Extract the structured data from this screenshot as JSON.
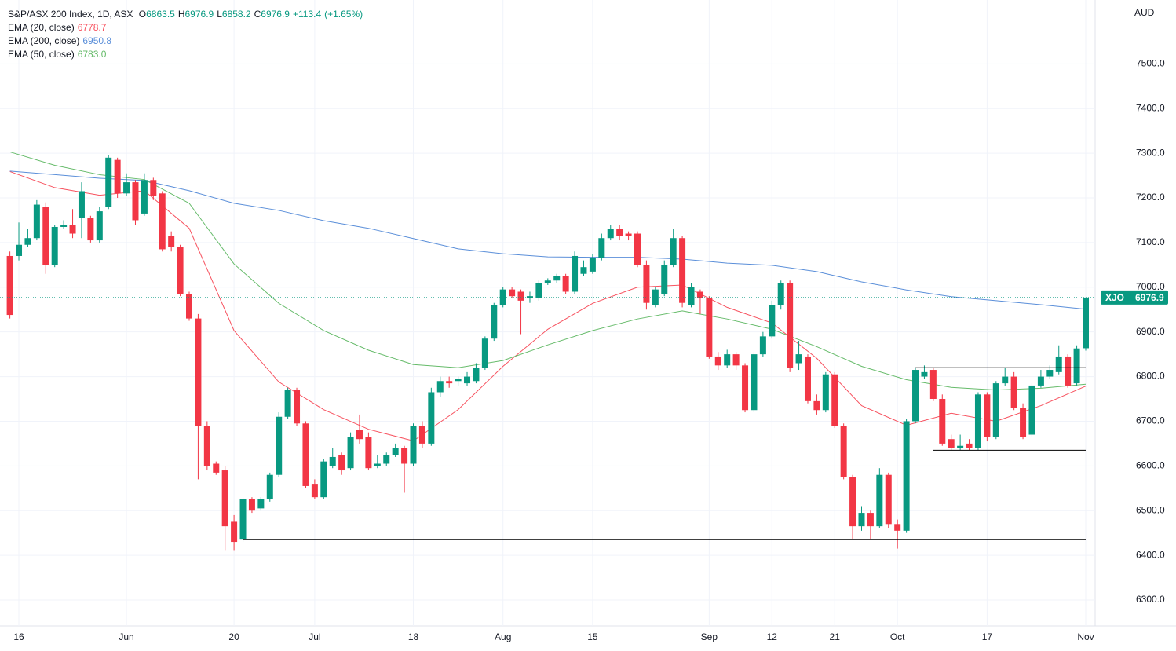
{
  "chart_data": {
    "type": "candlestick",
    "title": "S&P/ASX 200 Index, 1D, ASX",
    "currency": "AUD",
    "symbol": "XJO",
    "header": {
      "open": 6863.5,
      "high": 6976.9,
      "low": 6858.2,
      "close": 6976.9,
      "change": {
        "value": 113.4,
        "label": "+113.4"
      },
      "change_pct": {
        "value": 1.65,
        "label": "(+1.65%)"
      }
    },
    "up_color": "#089981",
    "down_color": "#f23645",
    "categories": [
      null,
      "16",
      null,
      null,
      null,
      null,
      null,
      null,
      null,
      null,
      null,
      null,
      null,
      "Jun",
      null,
      null,
      null,
      null,
      null,
      null,
      null,
      null,
      null,
      null,
      null,
      "20",
      null,
      null,
      null,
      null,
      null,
      null,
      null,
      null,
      "Jul",
      null,
      null,
      null,
      null,
      null,
      null,
      null,
      null,
      null,
      null,
      "18",
      null,
      null,
      null,
      null,
      null,
      null,
      null,
      null,
      null,
      "Aug",
      null,
      null,
      null,
      null,
      null,
      null,
      null,
      null,
      null,
      "15",
      null,
      null,
      null,
      null,
      null,
      null,
      null,
      null,
      null,
      null,
      null,
      null,
      "Sep",
      null,
      null,
      null,
      null,
      null,
      null,
      "12",
      null,
      null,
      null,
      null,
      null,
      null,
      "21",
      null,
      null,
      null,
      null,
      null,
      null,
      "Oct",
      null,
      null,
      null,
      null,
      null,
      null,
      null,
      null,
      null,
      "17",
      null,
      null,
      null,
      null,
      null,
      null,
      null,
      null,
      null,
      null,
      "Nov"
    ],
    "open": [
      7070,
      7070,
      7095,
      7110,
      7180,
      7050,
      7135,
      7140,
      7155,
      7155,
      7105,
      7180,
      7285,
      7210,
      7235,
      7165,
      7240,
      7210,
      7115,
      7090,
      6985,
      6930,
      6690,
      6605,
      6590,
      6475,
      6435,
      6525,
      6505,
      6525,
      6580,
      6710,
      6770,
      6695,
      6560,
      6530,
      6600,
      6625,
      6595,
      6680,
      6665,
      6600,
      6605,
      6625,
      6640,
      6605,
      6690,
      6650,
      6765,
      6790,
      6790,
      6785,
      6790,
      6820,
      6885,
      6960,
      6995,
      6990,
      6975,
      6975,
      7010,
      7015,
      7025,
      6990,
      7030,
      7035,
      7065,
      7110,
      7130,
      7120,
      7120,
      7050,
      6960,
      6985,
      7050,
      7110,
      6960,
      6990,
      6975,
      6845,
      6825,
      6850,
      6825,
      6725,
      6850,
      6890,
      6960,
      7010,
      6830,
      6845,
      6745,
      6725,
      6805,
      6690,
      6575,
      6465,
      6495,
      6465,
      6580,
      6470,
      6455,
      6700,
      6800,
      6815,
      6750,
      6660,
      6640,
      6650,
      6640,
      6760,
      6665,
      6785,
      6800,
      6730,
      6670,
      6780,
      6800,
      6810,
      6845,
      6785,
      6863.5
    ],
    "high": [
      7080,
      7145,
      7130,
      7195,
      7190,
      7140,
      7150,
      7175,
      7235,
      7160,
      7180,
      7295,
      7290,
      7255,
      7240,
      7255,
      7245,
      7215,
      7125,
      7095,
      6990,
      6940,
      6700,
      6610,
      6600,
      6490,
      6530,
      6530,
      6530,
      6585,
      6720,
      6775,
      6775,
      6700,
      6570,
      6615,
      6640,
      6630,
      6675,
      6715,
      6675,
      6625,
      6630,
      6650,
      6645,
      6695,
      6700,
      6775,
      6800,
      6800,
      6800,
      6810,
      6830,
      6890,
      6965,
      7000,
      7000,
      6995,
      6990,
      7015,
      7020,
      7030,
      7030,
      7080,
      7060,
      7075,
      7120,
      7140,
      7140,
      7125,
      7125,
      7060,
      7000,
      7060,
      7130,
      7115,
      7010,
      6995,
      6980,
      6855,
      6860,
      6855,
      6830,
      6855,
      6900,
      6970,
      7015,
      7015,
      6880,
      6850,
      6760,
      6810,
      6810,
      6695,
      6580,
      6510,
      6500,
      6595,
      6585,
      6480,
      6705,
      6820,
      6825,
      6820,
      6760,
      6670,
      6670,
      6660,
      6765,
      6765,
      6790,
      6820,
      6810,
      6740,
      6785,
      6815,
      6825,
      6870,
      6850,
      6870,
      6976.9
    ],
    "low": [
      6930,
      7060,
      7090,
      7105,
      7030,
      7045,
      7130,
      7110,
      7110,
      7100,
      7100,
      7175,
      7200,
      7205,
      7140,
      7160,
      7195,
      7080,
      7080,
      6980,
      6925,
      6570,
      6590,
      6580,
      6410,
      6410,
      6430,
      6495,
      6500,
      6520,
      6575,
      6705,
      6690,
      6550,
      6525,
      6525,
      6595,
      6580,
      6590,
      6650,
      6590,
      6595,
      6600,
      6620,
      6540,
      6600,
      6640,
      6645,
      6755,
      6775,
      6780,
      6780,
      6785,
      6815,
      6880,
      6955,
      6975,
      6895,
      6965,
      6970,
      7005,
      7010,
      6985,
      6985,
      7025,
      7030,
      7060,
      7105,
      7105,
      7105,
      7045,
      6950,
      6955,
      6980,
      7045,
      6955,
      6955,
      6940,
      6840,
      6815,
      6820,
      6815,
      6720,
      6720,
      6845,
      6885,
      6950,
      6810,
      6815,
      6740,
      6715,
      6720,
      6685,
      6570,
      6435,
      6455,
      6435,
      6460,
      6460,
      6415,
      6450,
      6695,
      6795,
      6745,
      6645,
      6635,
      6635,
      6635,
      6635,
      6655,
      6660,
      6780,
      6725,
      6660,
      6665,
      6775,
      6795,
      6805,
      6775,
      6780,
      6858.2
    ],
    "close": [
      6938,
      7095,
      7110,
      7185,
      7050,
      7135,
      7140,
      7120,
      7215,
      7105,
      7170,
      7290,
      7210,
      7235,
      7150,
      7240,
      7205,
      7085,
      7090,
      6985,
      6930,
      6690,
      6600,
      6585,
      6465,
      6430,
      6525,
      6500,
      6525,
      6580,
      6710,
      6770,
      6695,
      6555,
      6530,
      6610,
      6620,
      6590,
      6665,
      6660,
      6595,
      6605,
      6625,
      6640,
      6605,
      6690,
      6650,
      6765,
      6790,
      6785,
      6795,
      6800,
      6820,
      6885,
      6960,
      6995,
      6980,
      6970,
      6980,
      7010,
      7015,
      7025,
      6990,
      7070,
      7045,
      7065,
      7110,
      7130,
      7115,
      7115,
      7050,
      6965,
      6995,
      7050,
      7110,
      6965,
      7000,
      6975,
      6845,
      6825,
      6850,
      6825,
      6725,
      6850,
      6890,
      6960,
      7010,
      6820,
      6850,
      6745,
      6725,
      6805,
      6690,
      6575,
      6465,
      6495,
      6465,
      6580,
      6470,
      6455,
      6700,
      6815,
      6810,
      6750,
      6650,
      6640,
      6645,
      6640,
      6760,
      6665,
      6785,
      6800,
      6730,
      6665,
      6780,
      6800,
      6815,
      6845,
      6780,
      6863,
      6976.9
    ],
    "series": [
      {
        "name": "EMA (20, close)",
        "color": "#f7525f",
        "x": [
          0,
          5,
          10,
          15,
          20,
          25,
          30,
          35,
          40,
          45,
          50,
          55,
          60,
          65,
          70,
          75,
          80,
          85,
          90,
          95,
          100,
          105,
          110,
          115,
          120
        ],
        "values": [
          7259,
          7223,
          7206,
          7216,
          7132,
          6903,
          6788,
          6726,
          6682,
          6656,
          6726,
          6823,
          6906,
          6964,
          7000,
          7005,
          6955,
          6920,
          6841,
          6735,
          6691,
          6718,
          6700,
          6735,
          6778.7
        ],
        "value_labels": [
          null,
          null,
          null,
          null,
          null,
          null,
          null,
          null,
          null,
          null,
          null,
          null,
          null,
          null,
          null,
          null,
          null,
          null,
          null,
          null,
          null,
          null,
          null,
          null,
          "6778.7"
        ]
      },
      {
        "name": "EMA (200, close)",
        "color": "#5b8fd9",
        "x": [
          0,
          5,
          10,
          15,
          20,
          25,
          30,
          35,
          40,
          45,
          50,
          55,
          60,
          65,
          70,
          75,
          80,
          85,
          90,
          95,
          100,
          105,
          110,
          115,
          120
        ],
        "values": [
          7260,
          7252,
          7244,
          7239,
          7216,
          7188,
          7172,
          7149,
          7132,
          7109,
          7086,
          7075,
          7068,
          7067,
          7067,
          7063,
          7054,
          7049,
          7035,
          7012,
          6994,
          6979,
          6970,
          6961,
          6950.8
        ],
        "value_labels": [
          null,
          null,
          null,
          null,
          null,
          null,
          null,
          null,
          null,
          null,
          null,
          null,
          null,
          null,
          null,
          null,
          null,
          null,
          null,
          null,
          null,
          null,
          null,
          null,
          "6950.8"
        ]
      },
      {
        "name": "EMA (50, close)",
        "color": "#66bb6a",
        "x": [
          0,
          5,
          10,
          15,
          20,
          25,
          30,
          35,
          40,
          45,
          50,
          55,
          60,
          65,
          70,
          75,
          80,
          85,
          90,
          95,
          100,
          105,
          110,
          115,
          120
        ],
        "values": [
          7303,
          7273,
          7252,
          7241,
          7188,
          7052,
          6964,
          6903,
          6859,
          6827,
          6820,
          6836,
          6871,
          6903,
          6929,
          6947,
          6929,
          6906,
          6867,
          6823,
          6793,
          6776,
          6770,
          6774,
          6783
        ],
        "value_labels": [
          null,
          null,
          null,
          null,
          null,
          null,
          null,
          null,
          null,
          null,
          null,
          null,
          null,
          null,
          null,
          null,
          null,
          null,
          null,
          null,
          null,
          null,
          null,
          null,
          "6783.0"
        ]
      }
    ],
    "hlines": [
      {
        "y": 6435,
        "x": [
          26,
          120
        ]
      },
      {
        "y": 6820,
        "x": [
          101,
          120
        ]
      },
      {
        "y": 6635,
        "x": [
          103,
          120
        ]
      }
    ],
    "ylim": [
      6242,
      7643
    ],
    "yticks": [
      {
        "value": 6300,
        "label": "6300.0"
      },
      {
        "value": 6400,
        "label": "6400.0"
      },
      {
        "value": 6500,
        "label": "6500.0"
      },
      {
        "value": 6600,
        "label": "6600.0"
      },
      {
        "value": 6700,
        "label": "6700.0"
      },
      {
        "value": 6800,
        "label": "6800.0"
      },
      {
        "value": 6900,
        "label": "6900.0"
      },
      {
        "value": 7000,
        "label": "7000.0"
      },
      {
        "value": 7100,
        "label": "7100.0"
      },
      {
        "value": 7200,
        "label": "7200.0"
      },
      {
        "value": 7300,
        "label": "7300.0"
      },
      {
        "value": 7400,
        "label": "7400.0"
      },
      {
        "value": 7500,
        "label": "7500.0"
      }
    ],
    "grid": true
  }
}
